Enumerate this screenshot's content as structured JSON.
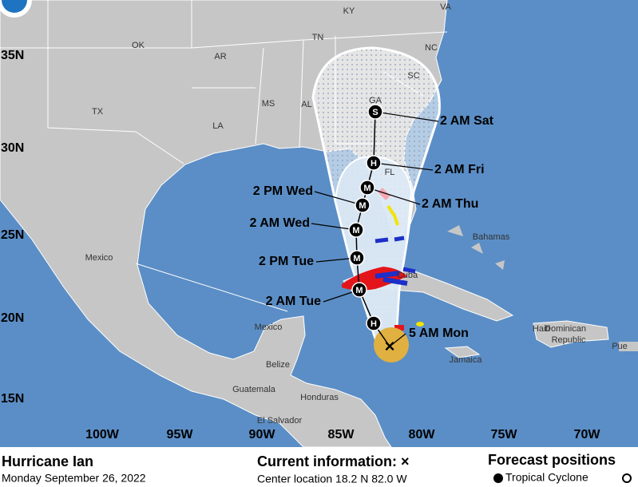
{
  "map": {
    "lat_labels": [
      "35N",
      "30N",
      "25N",
      "20N",
      "15N"
    ],
    "lon_labels": [
      "100W",
      "95W",
      "90W",
      "85W",
      "80W",
      "75W",
      "70W"
    ],
    "place_labels": [
      "KY",
      "VA",
      "TN",
      "NC",
      "OK",
      "AR",
      "SC",
      "TX",
      "MS",
      "AL",
      "GA",
      "LA",
      "FL",
      "Mexico",
      "Bahamas",
      "Cuba",
      "Mexico",
      "Belize",
      "Guatemala",
      "Honduras",
      "El Salvador",
      "Haiti",
      "Dominican",
      "Republic",
      "Jamaica",
      "Pue"
    ],
    "forecast_points": [
      {
        "label": "5 AM Mon",
        "symbol": "×"
      },
      {
        "label": "",
        "symbol": "H"
      },
      {
        "label": "2 AM Tue",
        "symbol": "M"
      },
      {
        "label": "2 PM Tue",
        "symbol": "M"
      },
      {
        "label": "2 AM Wed",
        "symbol": "M"
      },
      {
        "label": "2 PM Wed",
        "symbol": "M"
      },
      {
        "label": "2 AM Thu",
        "symbol": "M"
      },
      {
        "label": "2 AM Fri",
        "symbol": "H"
      },
      {
        "label": "2 AM Sat",
        "symbol": "S"
      }
    ]
  },
  "info": {
    "storm": "Hurricane Ian",
    "date": "Monday September 26, 2022",
    "current_title": "Current information: ×",
    "center_location": "Center location 18.2 N 82.0 W",
    "forecast_title": "Forecast positions",
    "legend_item": "Tropical Cyclone"
  }
}
